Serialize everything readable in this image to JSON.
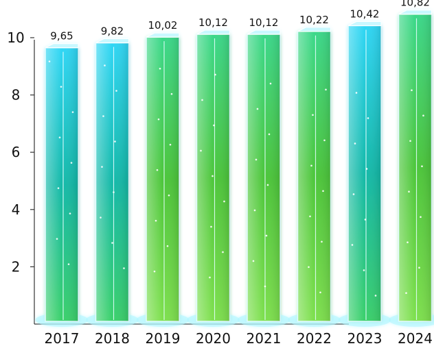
{
  "chart_data": {
    "type": "bar",
    "title": "",
    "xlabel": "",
    "ylabel": "",
    "categories": [
      "2017",
      "2018",
      "2019",
      "2020",
      "2021",
      "2022",
      "2023",
      "2024"
    ],
    "values": [
      9.65,
      9.82,
      10.02,
      10.12,
      10.12,
      10.22,
      10.42,
      10.82
    ],
    "value_labels": [
      "9,65",
      "9,82",
      "10,02",
      "10,12",
      "10,12",
      "10,22",
      "10,42",
      "10,82"
    ],
    "ylim": [
      0,
      10.8
    ],
    "yticks": [
      2,
      4,
      6,
      8,
      10
    ],
    "grid": false,
    "legend": "none",
    "colors": {
      "bar_blue": "#22c8f0",
      "bar_teal": "#19c89a",
      "bar_green": "#58d83a",
      "glow": "#aef6ff",
      "axis": "#333333"
    }
  }
}
